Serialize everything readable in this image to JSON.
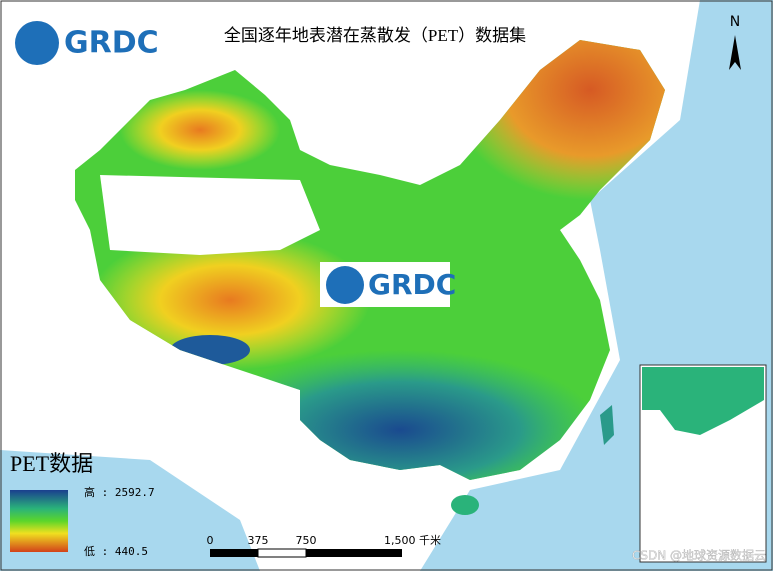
{
  "header": {
    "logo": "GRDC",
    "title": "全国逐年地表潜在蒸散发（PET）数据集"
  },
  "watermark_logo": "GRDC",
  "north_arrow": "N",
  "legend": {
    "title": "PET数据",
    "high": "高 : 2592.7",
    "low": "低 : 440.5"
  },
  "scale_bar": {
    "labels": [
      "0",
      "375",
      "750",
      "1,500 千米"
    ]
  },
  "credit": "CSDN @地球资源数据云"
}
